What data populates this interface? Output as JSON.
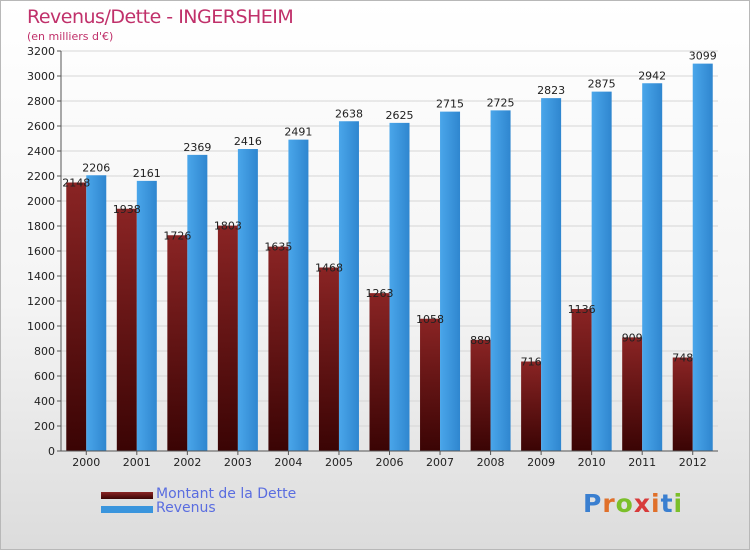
{
  "title": "Revenus/Dette - INGERSHEIM",
  "subtitle": "(en milliers d'€)",
  "logo_text": "Proxiti",
  "colors": {
    "debt": "#7a1515",
    "revenue": "#3a95dd",
    "title": "#c0306a",
    "legend_text": "#5a6de0"
  },
  "chart_data": {
    "type": "bar",
    "title": "Revenus/Dette - INGERSHEIM",
    "subtitle": "(en milliers d'€)",
    "xlabel": "",
    "ylabel": "",
    "ylim": [
      0,
      3200
    ],
    "ytick_step": 200,
    "grid": true,
    "legend_position": "bottom-left",
    "categories": [
      "2000",
      "2001",
      "2002",
      "2003",
      "2004",
      "2005",
      "2006",
      "2007",
      "2008",
      "2009",
      "2010",
      "2011",
      "2012"
    ],
    "series": [
      {
        "name": "Montant de la Dette",
        "values": [
          2148,
          1938,
          1726,
          1803,
          1635,
          1468,
          1263,
          1058,
          889,
          716,
          1136,
          909,
          748
        ]
      },
      {
        "name": "Revenus",
        "values": [
          2206,
          2161,
          2369,
          2416,
          2491,
          2638,
          2625,
          2715,
          2725,
          2823,
          2875,
          2942,
          3099
        ]
      }
    ]
  }
}
